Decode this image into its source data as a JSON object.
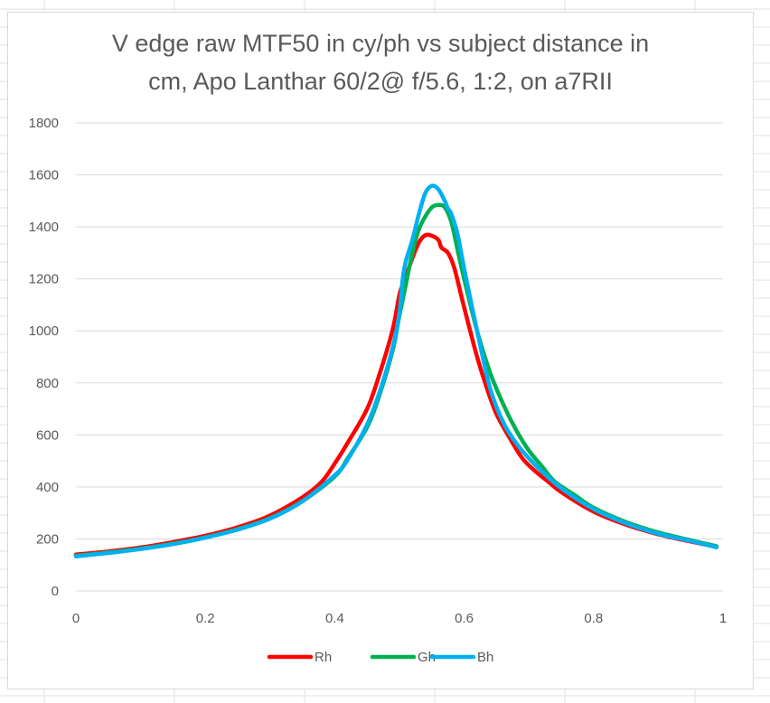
{
  "chart_data": {
    "type": "line",
    "title_lines": [
      "V edge raw MTF50 in cy/ph vs subject distance in",
      "cm, Apo Lanthar 60/2@ f/5.6, 1:2, on a7RII"
    ],
    "xlabel": "",
    "ylabel": "",
    "xlim": [
      0,
      1
    ],
    "ylim": [
      0,
      1800
    ],
    "x_ticks": [
      "0",
      "0.2",
      "0.4",
      "0.6",
      "0.8",
      "1"
    ],
    "y_ticks": [
      "0",
      "200",
      "400",
      "600",
      "800",
      "1000",
      "1200",
      "1400",
      "1600",
      "1800"
    ],
    "grid": true,
    "legend_position": "bottom",
    "series": [
      {
        "name": "Rh",
        "color": "#ff0000",
        "points": [
          [
            0.0,
            140
          ],
          [
            0.05,
            152
          ],
          [
            0.1,
            167
          ],
          [
            0.15,
            188
          ],
          [
            0.2,
            212
          ],
          [
            0.25,
            245
          ],
          [
            0.3,
            290
          ],
          [
            0.35,
            360
          ],
          [
            0.38,
            420
          ],
          [
            0.4,
            490
          ],
          [
            0.42,
            570
          ],
          [
            0.45,
            700
          ],
          [
            0.47,
            840
          ],
          [
            0.49,
            1010
          ],
          [
            0.5,
            1140
          ],
          [
            0.51,
            1210
          ],
          [
            0.52,
            1280
          ],
          [
            0.53,
            1340
          ],
          [
            0.54,
            1368
          ],
          [
            0.55,
            1366
          ],
          [
            0.56,
            1350
          ],
          [
            0.565,
            1320
          ],
          [
            0.575,
            1300
          ],
          [
            0.585,
            1240
          ],
          [
            0.6,
            1090
          ],
          [
            0.62,
            900
          ],
          [
            0.635,
            780
          ],
          [
            0.65,
            680
          ],
          [
            0.67,
            590
          ],
          [
            0.69,
            510
          ],
          [
            0.71,
            460
          ],
          [
            0.73,
            420
          ],
          [
            0.75,
            380
          ],
          [
            0.8,
            305
          ],
          [
            0.85,
            255
          ],
          [
            0.9,
            218
          ],
          [
            0.95,
            190
          ],
          [
            0.99,
            170
          ]
        ]
      },
      {
        "name": "Gh",
        "color": "#00b050",
        "points": [
          [
            0.0,
            135
          ],
          [
            0.05,
            148
          ],
          [
            0.1,
            163
          ],
          [
            0.15,
            182
          ],
          [
            0.2,
            206
          ],
          [
            0.25,
            238
          ],
          [
            0.3,
            280
          ],
          [
            0.35,
            345
          ],
          [
            0.4,
            440
          ],
          [
            0.42,
            510
          ],
          [
            0.45,
            630
          ],
          [
            0.47,
            760
          ],
          [
            0.49,
            930
          ],
          [
            0.5,
            1060
          ],
          [
            0.51,
            1180
          ],
          [
            0.52,
            1300
          ],
          [
            0.53,
            1390
          ],
          [
            0.54,
            1440
          ],
          [
            0.55,
            1475
          ],
          [
            0.56,
            1485
          ],
          [
            0.57,
            1475
          ],
          [
            0.58,
            1420
          ],
          [
            0.59,
            1310
          ],
          [
            0.6,
            1200
          ],
          [
            0.62,
            1000
          ],
          [
            0.64,
            840
          ],
          [
            0.66,
            720
          ],
          [
            0.68,
            620
          ],
          [
            0.7,
            540
          ],
          [
            0.72,
            480
          ],
          [
            0.74,
            420
          ],
          [
            0.77,
            370
          ],
          [
            0.8,
            320
          ],
          [
            0.85,
            265
          ],
          [
            0.9,
            225
          ],
          [
            0.95,
            195
          ],
          [
            0.99,
            172
          ]
        ]
      },
      {
        "name": "Bh",
        "color": "#00b0f0",
        "points": [
          [
            0.0,
            133
          ],
          [
            0.05,
            146
          ],
          [
            0.1,
            161
          ],
          [
            0.15,
            180
          ],
          [
            0.2,
            205
          ],
          [
            0.25,
            236
          ],
          [
            0.3,
            278
          ],
          [
            0.35,
            345
          ],
          [
            0.4,
            445
          ],
          [
            0.42,
            505
          ],
          [
            0.45,
            640
          ],
          [
            0.47,
            770
          ],
          [
            0.49,
            940
          ],
          [
            0.5,
            1070
          ],
          [
            0.505,
            1200
          ],
          [
            0.51,
            1270
          ],
          [
            0.52,
            1350
          ],
          [
            0.53,
            1450
          ],
          [
            0.54,
            1530
          ],
          [
            0.55,
            1558
          ],
          [
            0.56,
            1545
          ],
          [
            0.57,
            1500
          ],
          [
            0.575,
            1470
          ],
          [
            0.58,
            1450
          ],
          [
            0.59,
            1370
          ],
          [
            0.6,
            1240
          ],
          [
            0.62,
            1000
          ],
          [
            0.64,
            780
          ],
          [
            0.66,
            650
          ],
          [
            0.68,
            570
          ],
          [
            0.7,
            510
          ],
          [
            0.72,
            460
          ],
          [
            0.75,
            395
          ],
          [
            0.8,
            315
          ],
          [
            0.85,
            260
          ],
          [
            0.9,
            220
          ],
          [
            0.95,
            192
          ],
          [
            0.99,
            168
          ]
        ]
      }
    ]
  }
}
